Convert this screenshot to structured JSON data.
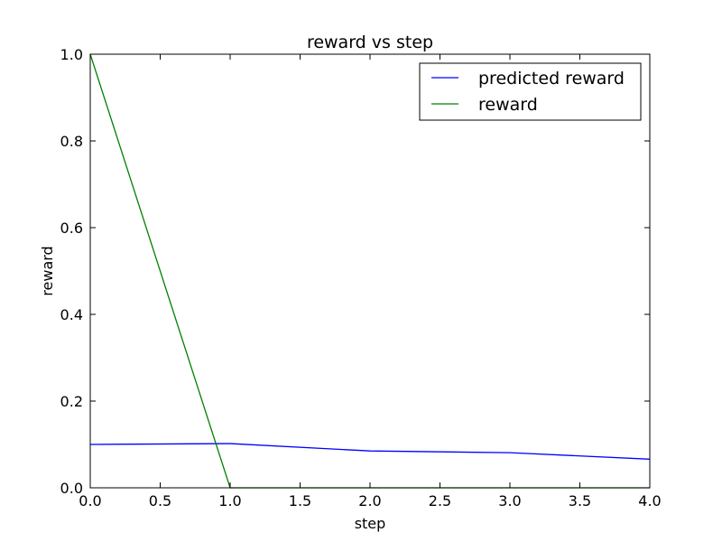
{
  "chart_data": {
    "type": "line",
    "title": "reward vs step",
    "xlabel": "step",
    "ylabel": "reward",
    "xlim": [
      0,
      4
    ],
    "ylim": [
      0,
      1
    ],
    "xticks": [
      "0.0",
      "0.5",
      "1.0",
      "1.5",
      "2.0",
      "2.5",
      "3.0",
      "3.5",
      "4.0"
    ],
    "yticks": [
      "0.0",
      "0.2",
      "0.4",
      "0.6",
      "0.8",
      "1.0"
    ],
    "x": [
      0,
      1,
      2,
      3,
      4
    ],
    "series": [
      {
        "name": "predicted reward",
        "color": "#0000ff",
        "values": [
          0.1,
          0.102,
          0.085,
          0.081,
          0.066
        ]
      },
      {
        "name": "reward",
        "color": "#008000",
        "values": [
          1.0,
          0.0,
          0.0,
          0.0,
          0.0
        ]
      }
    ],
    "grid": false,
    "legend_position": "top-right"
  }
}
